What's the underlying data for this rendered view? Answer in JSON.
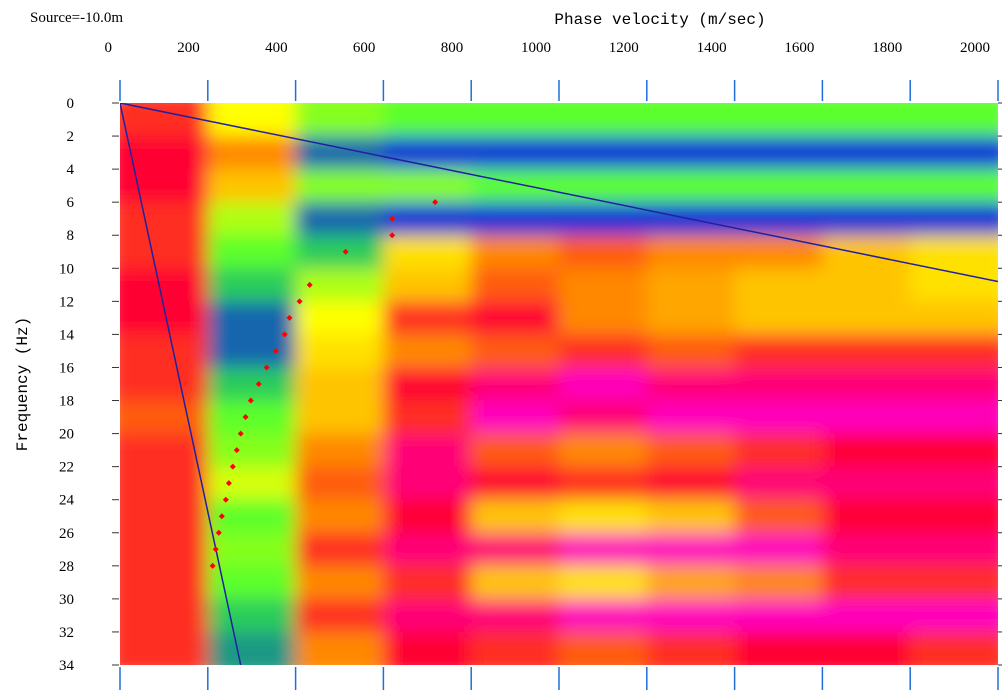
{
  "chart_data": {
    "type": "heatmap",
    "title": "Source=-10.0m",
    "x_label": "Phase velocity (m/sec)",
    "y_label": "Frequency (Hz)",
    "xlim": [
      0,
      2000
    ],
    "ylim": [
      0,
      34
    ],
    "xticks": [
      0,
      200,
      400,
      600,
      800,
      1000,
      1200,
      1400,
      1600,
      1800,
      2000
    ],
    "yticks": [
      0,
      2,
      4,
      6,
      8,
      10,
      12,
      14,
      16,
      18,
      20,
      22,
      24,
      26,
      28,
      30,
      32,
      34
    ],
    "x_edges": [
      0,
      200,
      400,
      600,
      800,
      1000,
      1200,
      1400,
      1600,
      1800,
      2000
    ],
    "y_edges": [
      0,
      2,
      4,
      6,
      8,
      10,
      12,
      14,
      16,
      18,
      20,
      22,
      24,
      26,
      28,
      30,
      32,
      34
    ],
    "z": [
      [
        0.8,
        0.5,
        0.35,
        0.3,
        0.3,
        0.3,
        0.3,
        0.3,
        0.3,
        0.3
      ],
      [
        0.85,
        0.7,
        0.1,
        0.05,
        0.05,
        0.05,
        0.05,
        0.05,
        0.05,
        0.05
      ],
      [
        0.85,
        0.6,
        0.35,
        0.35,
        0.3,
        0.3,
        0.3,
        0.3,
        0.3,
        0.3
      ],
      [
        0.8,
        0.4,
        0.1,
        0.05,
        0.05,
        0.05,
        0.05,
        0.05,
        0.05,
        0.05
      ],
      [
        0.8,
        0.3,
        0.2,
        0.55,
        0.7,
        0.75,
        0.7,
        0.7,
        0.6,
        0.55
      ],
      [
        0.85,
        0.2,
        0.4,
        0.6,
        0.75,
        0.7,
        0.65,
        0.6,
        0.6,
        0.55
      ],
      [
        0.85,
        0.1,
        0.5,
        0.8,
        0.85,
        0.7,
        0.65,
        0.6,
        0.6,
        0.6
      ],
      [
        0.8,
        0.1,
        0.55,
        0.7,
        0.75,
        0.8,
        0.75,
        0.8,
        0.8,
        0.8
      ],
      [
        0.8,
        0.2,
        0.6,
        0.85,
        0.9,
        0.95,
        0.9,
        0.9,
        0.9,
        0.9
      ],
      [
        0.75,
        0.3,
        0.6,
        0.8,
        0.95,
        0.9,
        0.95,
        0.95,
        0.95,
        0.95
      ],
      [
        0.8,
        0.35,
        0.7,
        0.9,
        0.75,
        0.7,
        0.75,
        0.8,
        0.85,
        0.85
      ],
      [
        0.8,
        0.45,
        0.75,
        0.9,
        0.85,
        0.8,
        0.85,
        0.9,
        0.9,
        0.9
      ],
      [
        0.8,
        0.3,
        0.7,
        0.85,
        0.6,
        0.55,
        0.6,
        0.75,
        0.85,
        0.85
      ],
      [
        0.8,
        0.35,
        0.8,
        0.9,
        0.9,
        0.95,
        0.95,
        0.95,
        0.9,
        0.9
      ],
      [
        0.8,
        0.3,
        0.7,
        0.8,
        0.6,
        0.55,
        0.65,
        0.7,
        0.8,
        0.8
      ],
      [
        0.8,
        0.2,
        0.8,
        0.9,
        0.9,
        0.95,
        0.95,
        0.95,
        0.95,
        0.95
      ],
      [
        0.8,
        0.15,
        0.7,
        0.85,
        0.8,
        0.75,
        0.8,
        0.85,
        0.85,
        0.8
      ]
    ],
    "colorscale": [
      {
        "value": 0,
        "color": "#0000ff"
      },
      {
        "value": 0.25,
        "color": "#33ff33"
      },
      {
        "value": 0.5,
        "color": "#ffff00"
      },
      {
        "value": 0.7,
        "color": "#ff8800"
      },
      {
        "value": 0.85,
        "color": "#ff0033"
      },
      {
        "value": 1,
        "color": "#ff00ff"
      }
    ],
    "lines": [
      {
        "x": [
          0,
          2000
        ],
        "y": [
          0,
          10.8
        ],
        "color": "#2020a0"
      },
      {
        "x": [
          0,
          275
        ],
        "y": [
          0,
          34
        ],
        "color": "#2020a0"
      }
    ],
    "picks": {
      "color": "#ff0000",
      "x": [
        718,
        620,
        620,
        514,
        432,
        409,
        386,
        375,
        355,
        334,
        316,
        298,
        286,
        275,
        266,
        257,
        248,
        241,
        232,
        225,
        218,
        211
      ],
      "y": [
        6,
        7,
        8,
        9,
        11,
        12,
        13,
        14,
        15,
        16,
        17,
        18,
        19,
        20,
        21,
        22,
        23,
        24,
        25,
        26,
        27,
        28
      ]
    },
    "axis_color": "#1f6fd6"
  }
}
